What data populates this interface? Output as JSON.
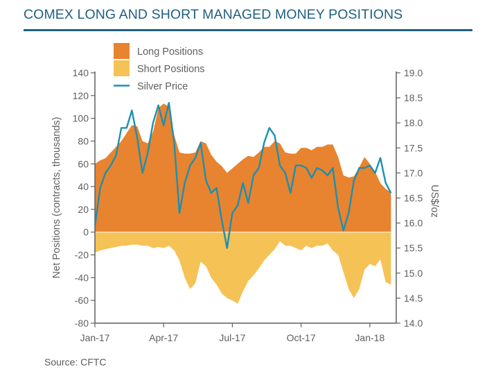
{
  "title": "COMEX LONG AND SHORT MANAGED MONEY POSITIONS",
  "source": "Source: CFTC",
  "colors": {
    "long": "#e8832f",
    "short": "#f5c256",
    "price": "#1c8fb0",
    "title": "#1f5f80",
    "axis": "#5f5f5f"
  },
  "chart_data": {
    "type": "area",
    "title": "COMEX LONG AND SHORT MANAGED MONEY POSITIONS",
    "x_ticks": [
      {
        "label": "Jan-17",
        "t": 0
      },
      {
        "label": "Apr-17",
        "t": 13
      },
      {
        "label": "Jul-17",
        "t": 26
      },
      {
        "label": "Oct-17",
        "t": 39
      },
      {
        "label": "Jan-18",
        "t": 52
      }
    ],
    "x_range": [
      0,
      57
    ],
    "ylabel_left": "Net Positions (contracts, thousands)",
    "ylim_left": [
      -80,
      140
    ],
    "yticks_left": [
      "140",
      "120",
      "100",
      "80",
      "60",
      "40",
      "20",
      "0",
      "-20",
      "-40",
      "-60",
      "-80"
    ],
    "ylabel_right": "US$/oz",
    "ylim_right": [
      14.0,
      19.0
    ],
    "yticks_right": [
      "19.0",
      "18.5",
      "18.0",
      "17.5",
      "17.0",
      "16.5",
      "16.0",
      "15.5",
      "15.0",
      "14.5",
      "14.0"
    ],
    "legend": [
      {
        "name": "Long Positions",
        "kind": "area"
      },
      {
        "name": "Short Positions",
        "kind": "area"
      },
      {
        "name": "Silver Price",
        "kind": "line"
      }
    ],
    "series": [
      {
        "name": "Long Positions",
        "axis": "left",
        "values": [
          [
            0,
            60
          ],
          [
            1,
            63
          ],
          [
            2,
            65
          ],
          [
            3,
            70
          ],
          [
            4,
            75
          ],
          [
            5,
            80
          ],
          [
            6,
            87
          ],
          [
            7,
            94
          ],
          [
            8,
            93
          ],
          [
            9,
            80
          ],
          [
            10,
            78
          ],
          [
            11,
            88
          ],
          [
            12,
            109
          ],
          [
            13,
            113
          ],
          [
            14,
            110
          ],
          [
            15,
            85
          ],
          [
            16,
            70
          ],
          [
            17,
            69
          ],
          [
            18,
            69
          ],
          [
            19,
            70
          ],
          [
            20,
            80
          ],
          [
            21,
            78
          ],
          [
            22,
            68
          ],
          [
            23,
            62
          ],
          [
            24,
            58
          ],
          [
            25,
            52
          ],
          [
            26,
            56
          ],
          [
            27,
            60
          ],
          [
            28,
            64
          ],
          [
            29,
            67
          ],
          [
            30,
            66
          ],
          [
            31,
            70
          ],
          [
            32,
            75
          ],
          [
            33,
            75
          ],
          [
            34,
            80
          ],
          [
            35,
            78
          ],
          [
            36,
            70
          ],
          [
            37,
            69
          ],
          [
            38,
            69
          ],
          [
            39,
            74
          ],
          [
            40,
            74
          ],
          [
            41,
            72
          ],
          [
            42,
            75
          ],
          [
            43,
            75
          ],
          [
            44,
            77
          ],
          [
            45,
            77
          ],
          [
            46,
            66
          ],
          [
            47,
            50
          ],
          [
            48,
            48
          ],
          [
            49,
            49
          ],
          [
            50,
            57
          ],
          [
            51,
            66
          ],
          [
            52,
            60
          ],
          [
            53,
            53
          ],
          [
            54,
            43
          ],
          [
            55,
            38
          ],
          [
            56,
            35
          ]
        ]
      },
      {
        "name": "Short Positions",
        "axis": "left",
        "values": [
          [
            0,
            -18
          ],
          [
            1,
            -16
          ],
          [
            2,
            -15
          ],
          [
            3,
            -14
          ],
          [
            4,
            -13
          ],
          [
            5,
            -12
          ],
          [
            6,
            -12
          ],
          [
            7,
            -11
          ],
          [
            8,
            -11
          ],
          [
            9,
            -12
          ],
          [
            10,
            -12
          ],
          [
            11,
            -14
          ],
          [
            12,
            -13
          ],
          [
            13,
            -14
          ],
          [
            14,
            -12
          ],
          [
            15,
            -16
          ],
          [
            16,
            -25
          ],
          [
            17,
            -40
          ],
          [
            18,
            -50
          ],
          [
            19,
            -45
          ],
          [
            20,
            -26
          ],
          [
            21,
            -30
          ],
          [
            22,
            -40
          ],
          [
            23,
            -46
          ],
          [
            24,
            -54
          ],
          [
            25,
            -58
          ],
          [
            26,
            -60
          ],
          [
            27,
            -63
          ],
          [
            28,
            -52
          ],
          [
            29,
            -43
          ],
          [
            30,
            -38
          ],
          [
            31,
            -32
          ],
          [
            32,
            -25
          ],
          [
            33,
            -20
          ],
          [
            34,
            -15
          ],
          [
            35,
            -8
          ],
          [
            36,
            -12
          ],
          [
            37,
            -12
          ],
          [
            38,
            -14
          ],
          [
            39,
            -16
          ],
          [
            40,
            -12
          ],
          [
            41,
            -14
          ],
          [
            42,
            -12
          ],
          [
            43,
            -12
          ],
          [
            44,
            -10
          ],
          [
            45,
            -16
          ],
          [
            46,
            -20
          ],
          [
            47,
            -35
          ],
          [
            48,
            -50
          ],
          [
            49,
            -58
          ],
          [
            50,
            -50
          ],
          [
            51,
            -33
          ],
          [
            52,
            -28
          ],
          [
            53,
            -30
          ],
          [
            54,
            -24
          ],
          [
            55,
            -44
          ],
          [
            56,
            -46
          ]
        ]
      },
      {
        "name": "Silver Price",
        "axis": "right",
        "values": [
          [
            0,
            15.95
          ],
          [
            1,
            16.7
          ],
          [
            2,
            17.0
          ],
          [
            3,
            17.15
          ],
          [
            4,
            17.35
          ],
          [
            5,
            17.9
          ],
          [
            6,
            17.9
          ],
          [
            7,
            18.25
          ],
          [
            8,
            17.7
          ],
          [
            9,
            17.0
          ],
          [
            10,
            17.4
          ],
          [
            11,
            18.0
          ],
          [
            12,
            18.35
          ],
          [
            13,
            17.95
          ],
          [
            14,
            18.4
          ],
          [
            15,
            17.6
          ],
          [
            16,
            16.2
          ],
          [
            17,
            16.8
          ],
          [
            18,
            17.15
          ],
          [
            19,
            17.3
          ],
          [
            20,
            17.6
          ],
          [
            21,
            16.85
          ],
          [
            22,
            16.6
          ],
          [
            23,
            16.7
          ],
          [
            24,
            16.05
          ],
          [
            25,
            15.5
          ],
          [
            26,
            16.2
          ],
          [
            27,
            16.35
          ],
          [
            28,
            16.8
          ],
          [
            29,
            16.4
          ],
          [
            30,
            16.95
          ],
          [
            31,
            17.1
          ],
          [
            32,
            17.6
          ],
          [
            33,
            17.9
          ],
          [
            34,
            17.75
          ],
          [
            35,
            17.15
          ],
          [
            36,
            17.0
          ],
          [
            37,
            16.6
          ],
          [
            38,
            17.15
          ],
          [
            39,
            17.15
          ],
          [
            40,
            17.1
          ],
          [
            41,
            16.9
          ],
          [
            42,
            17.1
          ],
          [
            43,
            17.05
          ],
          [
            44,
            16.95
          ],
          [
            45,
            17.1
          ],
          [
            46,
            16.3
          ],
          [
            47,
            15.85
          ],
          [
            48,
            16.2
          ],
          [
            49,
            16.85
          ],
          [
            50,
            17.1
          ],
          [
            51,
            17.1
          ],
          [
            52,
            17.15
          ],
          [
            53,
            17.0
          ],
          [
            54,
            17.3
          ],
          [
            55,
            16.8
          ],
          [
            56,
            16.6
          ]
        ]
      }
    ]
  }
}
